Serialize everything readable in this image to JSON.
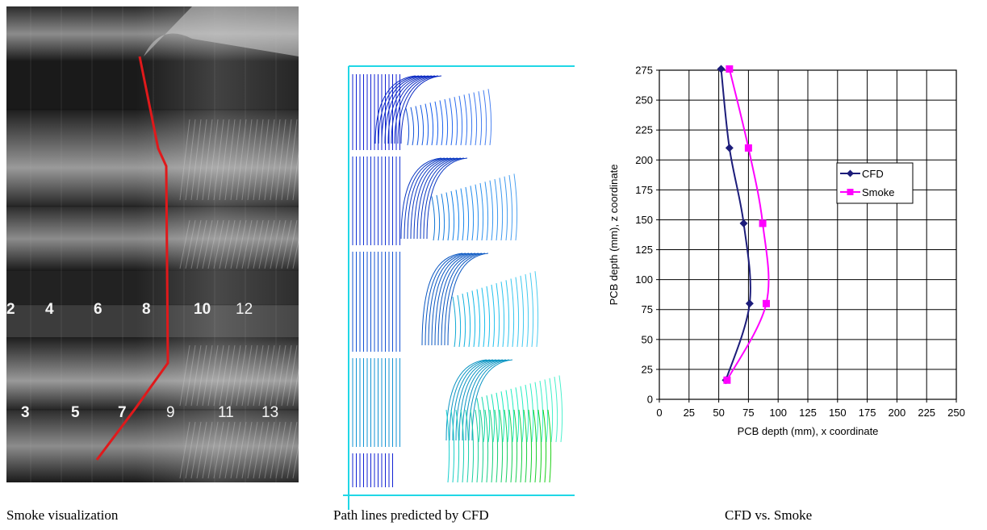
{
  "captions": {
    "photo": "Smoke visualization",
    "cfd": "Path lines predicted by CFD",
    "plot": "CFD vs. Smoke"
  },
  "photo": {
    "top_numbers": [
      "2",
      "4",
      "6",
      "8",
      "10",
      "12"
    ],
    "bottom_numbers": [
      "3",
      "5",
      "7",
      "9",
      "11",
      "13"
    ],
    "trace_color": "#e0191b"
  },
  "chart_data": {
    "type": "line",
    "xlabel": "PCB depth (mm), x coordinate",
    "ylabel": "PCB depth (mm), z coordinate",
    "xlim": [
      0,
      250
    ],
    "ylim": [
      0,
      275
    ],
    "xticks": [
      "0",
      "25",
      "50",
      "75",
      "100",
      "125",
      "150",
      "175",
      "200",
      "225",
      "250"
    ],
    "yticks": [
      "0",
      "25",
      "50",
      "75",
      "100",
      "125",
      "150",
      "175",
      "200",
      "225",
      "250",
      "275"
    ],
    "grid": true,
    "legend_position": "right",
    "series": [
      {
        "name": "CFD",
        "color": "#1c1c7a",
        "marker": "diamond",
        "points": [
          [
            56,
            16
          ],
          [
            76,
            80
          ],
          [
            71,
            147
          ],
          [
            59,
            210
          ],
          [
            52,
            276
          ]
        ]
      },
      {
        "name": "Smoke",
        "color": "#ff00ff",
        "marker": "square",
        "points": [
          [
            57,
            16
          ],
          [
            90,
            80
          ],
          [
            87,
            147
          ],
          [
            75,
            210
          ],
          [
            59,
            276
          ]
        ]
      }
    ]
  }
}
